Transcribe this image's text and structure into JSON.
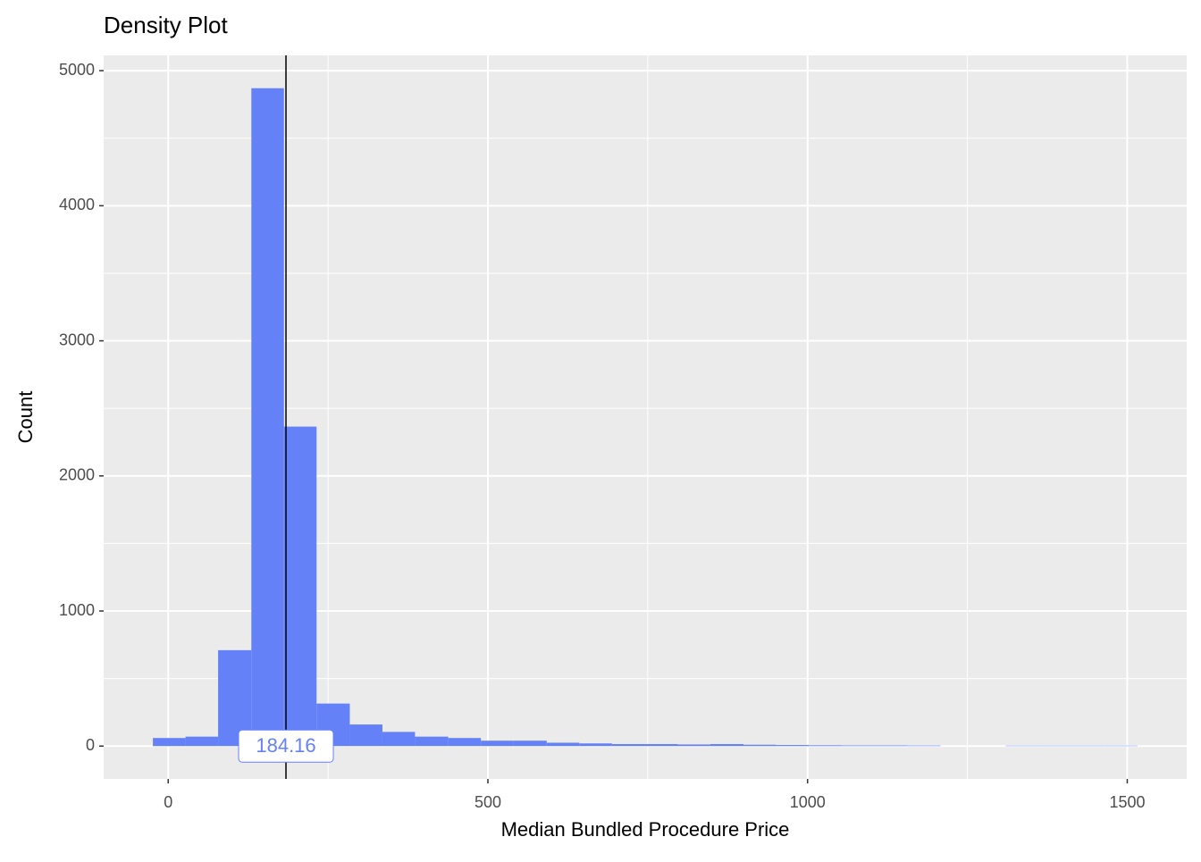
{
  "chart_data": {
    "type": "histogram",
    "title": "Density Plot",
    "x_label": "Median Bundled Procedure Price",
    "y_label": "Count",
    "bins": [
      -24,
      27,
      78,
      130,
      181,
      232,
      284,
      335,
      386,
      438,
      489,
      540,
      592,
      643,
      694,
      746,
      797,
      848,
      900,
      951,
      1002,
      1054,
      1105,
      1156,
      1208,
      1259,
      1310,
      1362,
      1413,
      1464,
      1516
    ],
    "values": [
      60,
      70,
      710,
      4870,
      2365,
      315,
      160,
      105,
      70,
      60,
      40,
      40,
      25,
      20,
      15,
      15,
      12,
      15,
      10,
      8,
      6,
      5,
      5,
      4,
      0,
      0,
      3,
      3,
      3,
      3
    ],
    "color": "#6581f7",
    "vline": {
      "value": 184.16
    },
    "xlim": [
      -101,
      1593
    ],
    "xticks": [
      0,
      500,
      1000,
      1500
    ],
    "xminor": [
      250,
      750,
      1250
    ],
    "ylim": [
      -243,
      5113
    ],
    "yticks": [
      0,
      1000,
      2000,
      3000,
      4000,
      5000
    ],
    "yminor": [
      500,
      1500,
      2500,
      3500,
      4500
    ],
    "grid": true
  }
}
